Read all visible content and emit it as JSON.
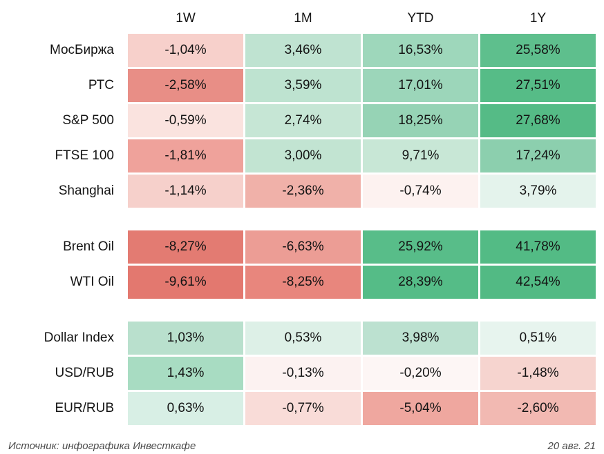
{
  "chart_data": {
    "type": "heatmap",
    "title": "",
    "columns": [
      "1W",
      "1M",
      "YTD",
      "1Y"
    ],
    "value_format": "percent with comma decimal separator",
    "color_scale": {
      "negative": "#e3786f",
      "neutral": "#ffffff",
      "positive": "#34ab74"
    },
    "rows": [
      {
        "label": "МосБиржа",
        "group": 0,
        "values": [
          -1.04,
          3.46,
          16.53,
          25.58
        ],
        "display": [
          "-1,04%",
          "3,46%",
          "16,53%",
          "25,58%"
        ],
        "colors": [
          "#f7d0cb",
          "#bfe3d1",
          "#9ed7bb",
          "#5ebf8d"
        ]
      },
      {
        "label": "РТС",
        "group": 0,
        "values": [
          -2.58,
          3.59,
          17.01,
          27.51
        ],
        "display": [
          "-2,58%",
          "3,59%",
          "17,01%",
          "27,51%"
        ],
        "colors": [
          "#e88e86",
          "#bee3d0",
          "#9cd6ba",
          "#56bc87"
        ]
      },
      {
        "label": "S&P 500",
        "group": 0,
        "values": [
          -0.59,
          2.74,
          18.25,
          27.68
        ],
        "display": [
          "-0,59%",
          "2,74%",
          "18,25%",
          "27,68%"
        ],
        "colors": [
          "#fae3df",
          "#c6e6d5",
          "#96d3b5",
          "#55bb86"
        ]
      },
      {
        "label": "FTSE 100",
        "group": 0,
        "values": [
          -1.81,
          3.0,
          9.71,
          17.24
        ],
        "display": [
          "-1,81%",
          "3,00%",
          "9,71%",
          "17,24%"
        ],
        "colors": [
          "#efa29b",
          "#c2e4d2",
          "#c8e7d6",
          "#8ccfae"
        ]
      },
      {
        "label": "Shanghai",
        "group": 0,
        "values": [
          -1.14,
          -2.36,
          -0.74,
          3.79
        ],
        "display": [
          "-1,14%",
          "-2,36%",
          "-0,74%",
          "3,79%"
        ],
        "colors": [
          "#f6d0cb",
          "#f0b1a9",
          "#fdf2f0",
          "#e4f3ec"
        ]
      },
      {
        "label": "Brent Oil",
        "group": 1,
        "values": [
          -8.27,
          -6.63,
          25.92,
          41.78
        ],
        "display": [
          "-8,27%",
          "-6,63%",
          "25,92%",
          "41,78%"
        ],
        "colors": [
          "#e37b72",
          "#ec9d95",
          "#58bd89",
          "#53bb85"
        ]
      },
      {
        "label": "WTI Oil",
        "group": 1,
        "values": [
          -9.61,
          -8.25,
          28.39,
          42.54
        ],
        "display": [
          "-9,61%",
          "-8,25%",
          "28,39%",
          "42,54%"
        ],
        "colors": [
          "#e3786f",
          "#e8867d",
          "#55bc87",
          "#52ba84"
        ]
      },
      {
        "label": "Dollar Index",
        "group": 2,
        "values": [
          1.03,
          0.53,
          3.98,
          0.51
        ],
        "display": [
          "1,03%",
          "0,53%",
          "3,98%",
          "0,51%"
        ],
        "colors": [
          "#b9e0cd",
          "#ddf0e7",
          "#bce1d0",
          "#e7f4ee"
        ]
      },
      {
        "label": "USD/RUB",
        "group": 2,
        "values": [
          1.43,
          -0.13,
          -0.2,
          -1.48
        ],
        "display": [
          "1,43%",
          "-0,13%",
          "-0,20%",
          "-1,48%"
        ],
        "colors": [
          "#a8dcc2",
          "#fcf2f1",
          "#fdf6f5",
          "#f6d4cf"
        ]
      },
      {
        "label": "EUR/RUB",
        "group": 2,
        "values": [
          0.63,
          -0.77,
          -5.04,
          -2.6
        ],
        "display": [
          "0,63%",
          "-0,77%",
          "-5,04%",
          "-2,60%"
        ],
        "colors": [
          "#d8efe5",
          "#f9dcd8",
          "#efa79f",
          "#f2b9b2"
        ]
      }
    ],
    "legend_position": "none",
    "grid": false
  },
  "footer": {
    "source": "Источник: инфографика Инвесткафе",
    "date": "20 авг. 21"
  }
}
